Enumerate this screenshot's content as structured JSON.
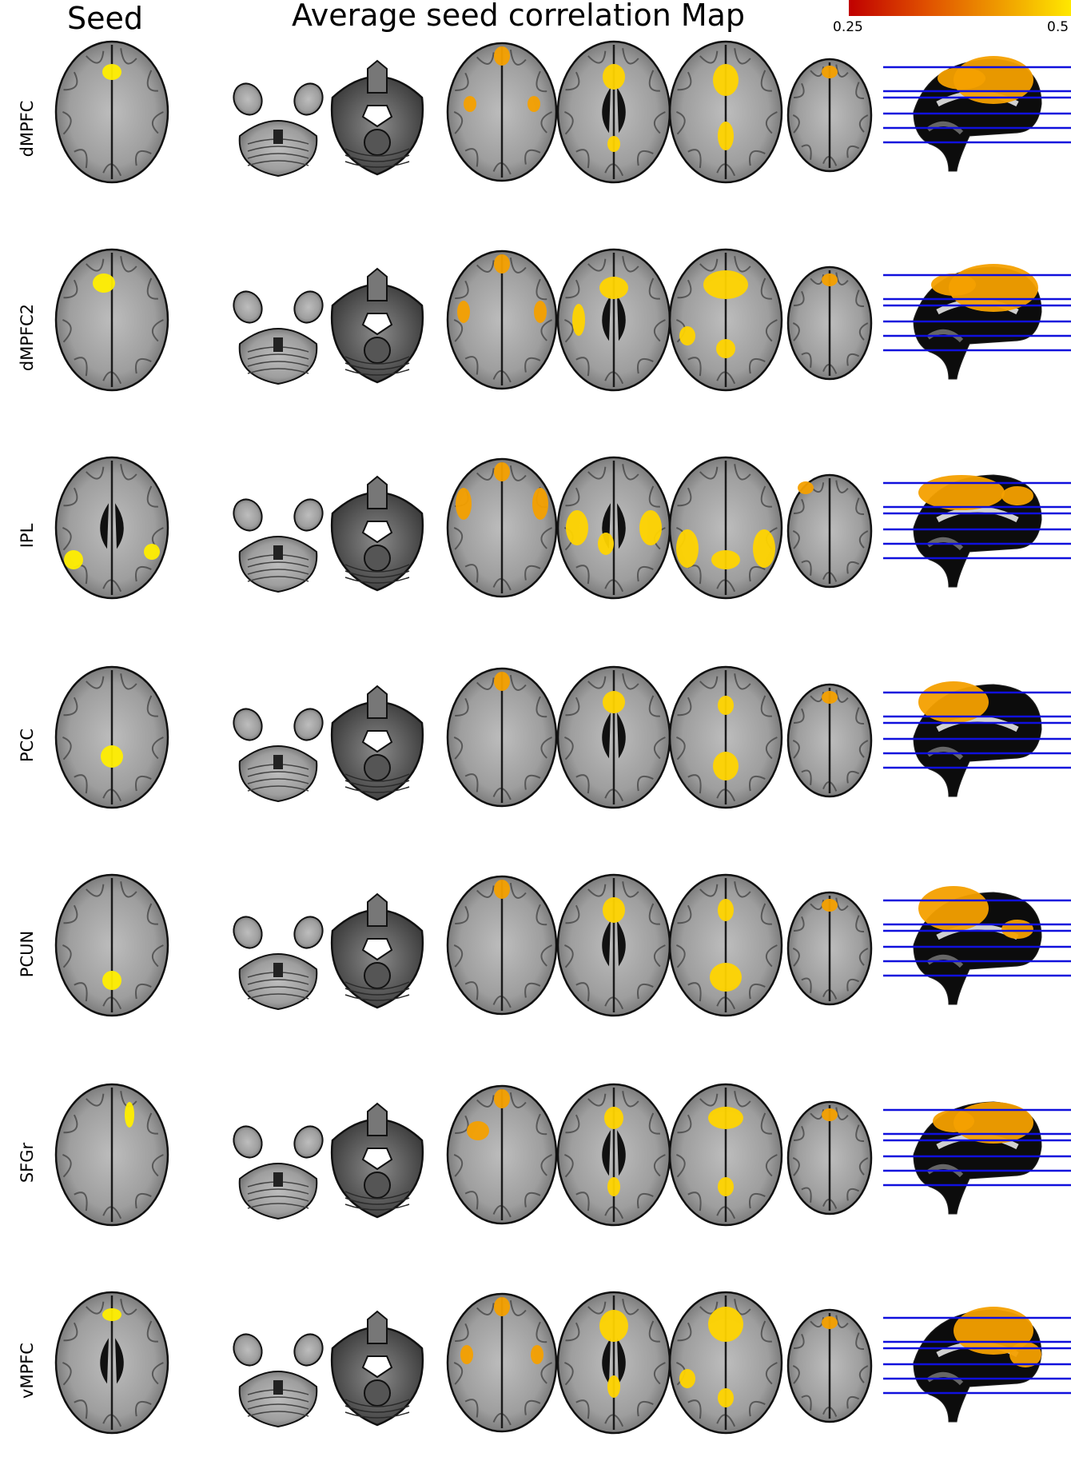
{
  "titles": {
    "seed": "Seed",
    "map": "Average seed correlation Map"
  },
  "colorbar": {
    "min_label": "0.25",
    "max_label": "0.5",
    "colors": [
      "#c00000",
      "#e05000",
      "#f0a000",
      "#ffe800"
    ]
  },
  "overlay_colors": {
    "seed": "#ffee00",
    "strong": "#ffd400",
    "medium": "#f4a000",
    "weak": "#e07a00",
    "cut_lines": "#1010dd"
  },
  "rows": [
    {
      "label": "dMPFC",
      "seed_region": "frontal-medial"
    },
    {
      "label": "dMPFC2",
      "seed_region": "frontal-bilateral"
    },
    {
      "label": "IPL",
      "seed_region": "parietal-lateral-bilateral"
    },
    {
      "label": "PCC",
      "seed_region": "posterior-medial"
    },
    {
      "label": "PCUN",
      "seed_region": "posterior-medial-caudal"
    },
    {
      "label": "SFGr",
      "seed_region": "frontal-right"
    },
    {
      "label": "vMPFC",
      "seed_region": "frontal-anterior"
    }
  ]
}
